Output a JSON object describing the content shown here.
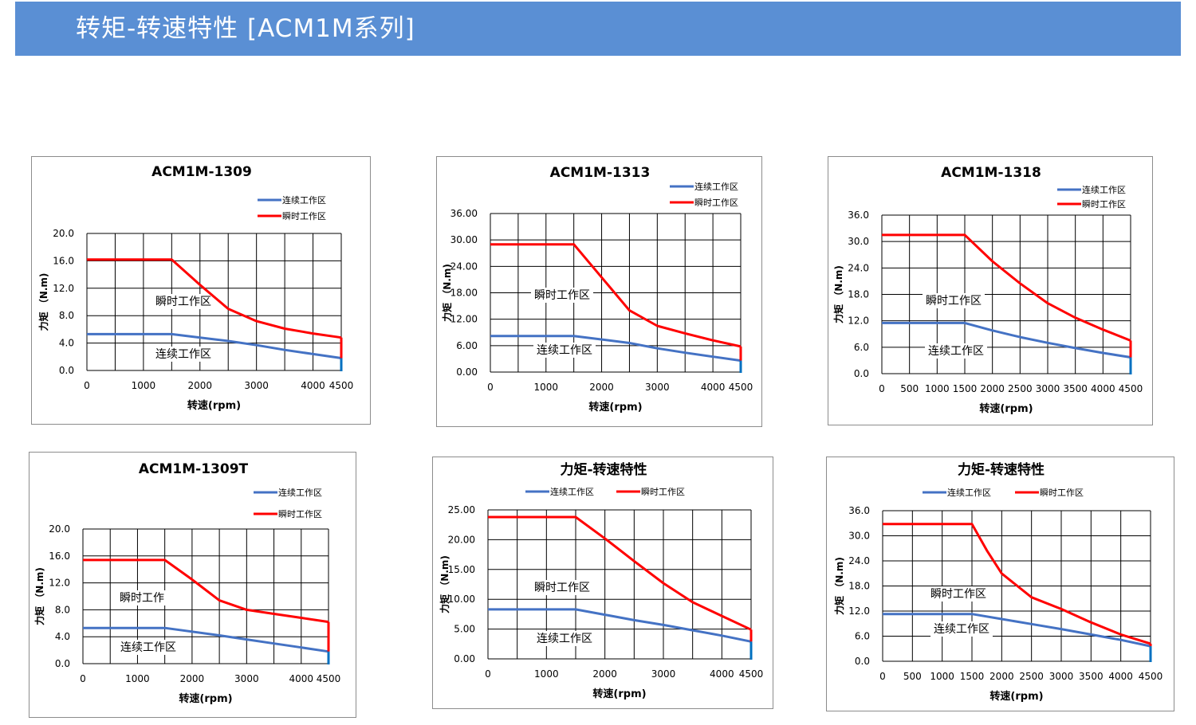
{
  "header": {
    "title": "转矩-转速特性 [ACM1M系列]",
    "color": "#5a8fd4"
  },
  "colors": {
    "continuous": "#4472c4",
    "peak": "#ff0000",
    "end_marker": "#0070c0",
    "grid": "#000000"
  },
  "chart_data": [
    {
      "type": "line",
      "title": "ACM1M-1309",
      "xlabel": "转速(rpm)",
      "ylabel": "力矩 （N.m)",
      "xlim": [
        0,
        4500
      ],
      "ylim": [
        0,
        20
      ],
      "x_ticks": [
        0,
        1000,
        2000,
        3000,
        4000,
        4500
      ],
      "y_ticks": [
        "0.0",
        "4.0",
        "8.0",
        "12.0",
        "16.0",
        "20.0"
      ],
      "grid_step_x": 500,
      "grid_step_y": 4,
      "legend": "top-right",
      "region_labels": {
        "peak": "瞬时工作区",
        "continuous": "连续工作区"
      },
      "series": [
        {
          "name": "连续工作区",
          "role": "continuous",
          "x": [
            0,
            1500,
            2500,
            3000,
            3500,
            4000,
            4500
          ],
          "y": [
            5.3,
            5.3,
            4.3,
            3.7,
            3.0,
            2.4,
            1.8
          ]
        },
        {
          "name": "瞬时工作区",
          "role": "peak",
          "x": [
            0,
            1500,
            2000,
            2500,
            3000,
            3500,
            4000,
            4500
          ],
          "y": [
            16.2,
            16.2,
            12.5,
            9.0,
            7.2,
            6.1,
            5.4,
            4.8
          ]
        }
      ]
    },
    {
      "type": "line",
      "title": "ACM1M-1313",
      "xlabel": "转速(rpm)",
      "ylabel": "力矩 （N.m)",
      "xlim": [
        0,
        4500
      ],
      "ylim": [
        0,
        36
      ],
      "x_ticks": [
        0,
        1000,
        2000,
        3000,
        4000,
        4500
      ],
      "y_ticks": [
        "0.00",
        "6.00",
        "12.00",
        "18.00",
        "24.00",
        "30.00",
        "36.00"
      ],
      "grid_step_x": 500,
      "grid_step_y": 6,
      "legend": "top-right",
      "region_labels": {
        "peak": "瞬时工作区",
        "continuous": "连续工作区"
      },
      "series": [
        {
          "name": "连续工作区",
          "role": "continuous",
          "x": [
            0,
            1500,
            2500,
            3000,
            3500,
            4000,
            4500
          ],
          "y": [
            8.2,
            8.2,
            6.6,
            5.4,
            4.4,
            3.5,
            2.6
          ]
        },
        {
          "name": "瞬时工作区",
          "role": "peak",
          "x": [
            0,
            1500,
            2000,
            2500,
            3000,
            3500,
            4000,
            4500
          ],
          "y": [
            29.0,
            29.0,
            21.5,
            14.0,
            10.5,
            8.8,
            7.2,
            5.8
          ]
        }
      ]
    },
    {
      "type": "line",
      "title": "ACM1M-1318",
      "xlabel": "转速(rpm)",
      "ylabel": "力矩 （N.m)",
      "xlim": [
        0,
        4500
      ],
      "ylim": [
        0,
        36
      ],
      "x_ticks": [
        0,
        500,
        1000,
        1500,
        2000,
        2500,
        3000,
        3500,
        4000,
        4500
      ],
      "y_ticks": [
        "0.0",
        "6.0",
        "12.0",
        "18.0",
        "24.0",
        "30.0",
        "36.0"
      ],
      "grid_step_x": 500,
      "grid_step_y": 6,
      "legend": "top-right",
      "region_labels": {
        "peak": "瞬时工作区",
        "continuous": "连续工作区"
      },
      "series": [
        {
          "name": "连续工作区",
          "role": "continuous",
          "x": [
            0,
            1500,
            2000,
            2500,
            3000,
            3500,
            4000,
            4500
          ],
          "y": [
            11.5,
            11.5,
            9.8,
            8.3,
            7.0,
            5.8,
            4.7,
            3.7
          ]
        },
        {
          "name": "瞬时工作区",
          "role": "peak",
          "x": [
            0,
            1500,
            2000,
            2500,
            3000,
            3500,
            4000,
            4500
          ],
          "y": [
            31.5,
            31.5,
            25.5,
            20.5,
            16.0,
            12.7,
            10.0,
            7.5
          ]
        }
      ]
    },
    {
      "type": "line",
      "title": "ACM1M-1309T",
      "xlabel": "转速(rpm)",
      "ylabel": "力矩 （N.m)",
      "xlim": [
        0,
        4500
      ],
      "ylim": [
        0,
        20
      ],
      "x_ticks": [
        0,
        1000,
        2000,
        3000,
        4000,
        4500
      ],
      "y_ticks": [
        "0.0",
        "4.0",
        "8.0",
        "12.0",
        "16.0",
        "20.0"
      ],
      "grid_step_x": 500,
      "grid_step_y": 4,
      "legend": "top-right",
      "region_labels": {
        "peak": "瞬时工作",
        "continuous": "连续工作区"
      },
      "series": [
        {
          "name": "连续工作区",
          "role": "continuous",
          "x": [
            0,
            1500,
            2500,
            3000,
            3500,
            4000,
            4500
          ],
          "y": [
            5.3,
            5.3,
            4.2,
            3.6,
            3.0,
            2.4,
            1.8
          ]
        },
        {
          "name": "瞬时工作区",
          "role": "peak",
          "x": [
            0,
            1500,
            2000,
            2500,
            3000,
            3500,
            4000,
            4500
          ],
          "y": [
            15.4,
            15.4,
            12.5,
            9.4,
            8.0,
            7.4,
            6.8,
            6.2
          ]
        }
      ]
    },
    {
      "type": "line",
      "title": "力矩-转速特性",
      "xlabel": "转速(rpm)",
      "ylabel": "力矩 （N.m)",
      "xlim": [
        0,
        4500
      ],
      "ylim": [
        0,
        25
      ],
      "x_ticks": [
        0,
        1000,
        2000,
        3000,
        4000,
        4500
      ],
      "y_ticks": [
        "0.00",
        "5.00",
        "10.00",
        "15.00",
        "20.00",
        "25.00"
      ],
      "grid_step_x": 500,
      "grid_step_y": 5,
      "legend": "top",
      "region_labels": {
        "peak": "瞬时工作区",
        "continuous": "连续工作区"
      },
      "series": [
        {
          "name": "连续工作区",
          "role": "continuous",
          "x": [
            0,
            1500,
            2000,
            2500,
            3000,
            3500,
            4000,
            4500
          ],
          "y": [
            8.3,
            8.3,
            7.4,
            6.5,
            5.7,
            4.8,
            3.9,
            2.9
          ]
        },
        {
          "name": "瞬时工作区",
          "role": "peak",
          "x": [
            0,
            1500,
            2000,
            2500,
            3000,
            3500,
            4000,
            4500
          ],
          "y": [
            23.8,
            23.8,
            20.2,
            16.4,
            12.7,
            9.5,
            7.2,
            4.9
          ]
        }
      ]
    },
    {
      "type": "line",
      "title": "力矩-转速特性",
      "xlabel": "转速(rpm)",
      "ylabel": "力矩 （N.m)",
      "xlim": [
        0,
        4500
      ],
      "ylim": [
        0,
        36
      ],
      "x_ticks": [
        0,
        500,
        1000,
        1500,
        2000,
        2500,
        3000,
        3500,
        4000,
        4500
      ],
      "y_ticks": [
        "0.0",
        "6.0",
        "12.0",
        "18.0",
        "24.0",
        "30.0",
        "36.0"
      ],
      "grid_step_x": 500,
      "grid_step_y": 6,
      "legend": "top",
      "region_labels": {
        "peak": "瞬时工作区",
        "continuous": "连续工作区"
      },
      "series": [
        {
          "name": "连续工作区",
          "role": "continuous",
          "x": [
            0,
            1500,
            2000,
            2500,
            3000,
            3500,
            4000,
            4500
          ],
          "y": [
            11.3,
            11.3,
            10.1,
            8.9,
            7.7,
            6.4,
            5.1,
            3.6
          ]
        },
        {
          "name": "瞬时工作区",
          "role": "peak",
          "x": [
            0,
            1500,
            1750,
            2000,
            2500,
            3000,
            3500,
            4000,
            4500
          ],
          "y": [
            32.8,
            32.8,
            26.5,
            21.0,
            15.3,
            12.5,
            9.3,
            6.4,
            4.2
          ]
        }
      ]
    }
  ]
}
